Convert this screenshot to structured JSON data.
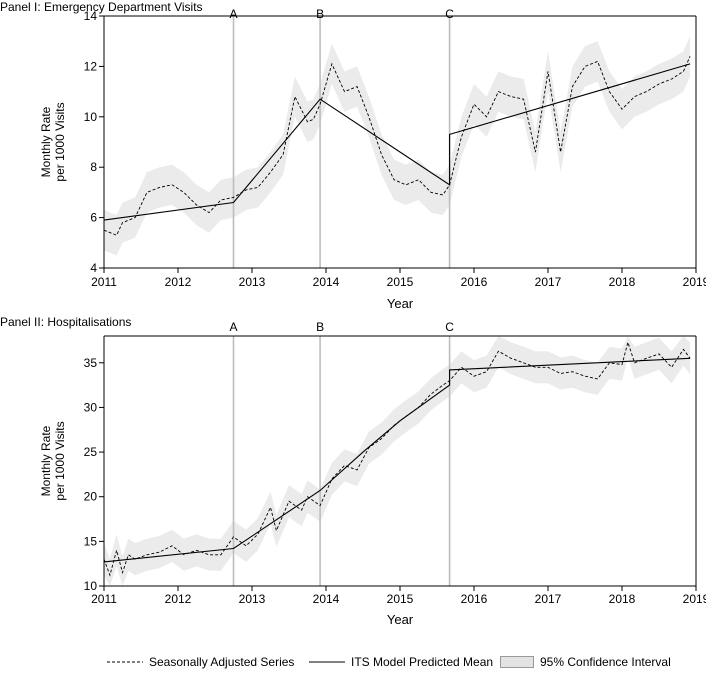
{
  "chart_data": [
    {
      "type": "line",
      "title": "Panel I: Emergency Department Visits",
      "xlabel": "Year",
      "ylabel": [
        "Monthly Rate",
        "per 1000 Visits"
      ],
      "xlim": [
        2011,
        2019
      ],
      "ylim": [
        4,
        14
      ],
      "xticks": [
        2011,
        2012,
        2013,
        2014,
        2015,
        2016,
        2017,
        2018,
        2019
      ],
      "yticks": [
        4,
        6,
        8,
        10,
        12,
        14
      ],
      "interventions": [
        {
          "label": "A",
          "x": 2012.75
        },
        {
          "label": "B",
          "x": 2013.92
        },
        {
          "label": "C",
          "x": 2015.67
        }
      ],
      "series": [
        {
          "name": "Seasonally Adjusted Series",
          "style": "dashed",
          "x": [
            2011.0,
            2011.17,
            2011.25,
            2011.42,
            2011.58,
            2011.75,
            2011.92,
            2012.08,
            2012.25,
            2012.42,
            2012.58,
            2012.75,
            2012.92,
            2013.08,
            2013.25,
            2013.42,
            2013.58,
            2013.75,
            2013.83,
            2013.92,
            2014.08,
            2014.25,
            2014.42,
            2014.58,
            2014.75,
            2014.92,
            2015.08,
            2015.25,
            2015.42,
            2015.58,
            2015.67,
            2015.83,
            2016.0,
            2016.17,
            2016.33,
            2016.5,
            2016.67,
            2016.83,
            2017.0,
            2017.17,
            2017.33,
            2017.5,
            2017.67,
            2017.83,
            2018.0,
            2018.17,
            2018.33,
            2018.5,
            2018.67,
            2018.83,
            2018.92
          ],
          "values": [
            5.5,
            5.3,
            5.8,
            6.0,
            7.0,
            7.2,
            7.3,
            7.0,
            6.5,
            6.2,
            6.7,
            6.8,
            7.1,
            7.2,
            7.8,
            8.5,
            10.8,
            9.8,
            9.9,
            10.5,
            12.1,
            11.0,
            11.2,
            10.0,
            8.5,
            7.5,
            7.3,
            7.5,
            7.0,
            6.9,
            7.3,
            9.2,
            10.5,
            10.0,
            11.0,
            10.8,
            10.7,
            8.6,
            11.8,
            8.6,
            11.2,
            12.0,
            12.2,
            11.0,
            10.3,
            10.8,
            11.0,
            11.3,
            11.5,
            11.8,
            12.4
          ]
        },
        {
          "name": "ITS Model Predicted Mean",
          "style": "solid",
          "x": [
            2011.0,
            2012.75,
            2013.92,
            2015.67,
            2015.67,
            2018.92
          ],
          "values": [
            5.9,
            6.6,
            10.7,
            7.3,
            9.3,
            12.1
          ]
        }
      ],
      "confidence_band_halfwidth": 0.8
    },
    {
      "type": "line",
      "title": "Panel II: Hospitalisations",
      "xlabel": "Year",
      "ylabel": [
        "Monthly Rate",
        "per 1000 Visits"
      ],
      "xlim": [
        2011,
        2019
      ],
      "ylim": [
        10,
        38
      ],
      "xticks": [
        2011,
        2012,
        2013,
        2014,
        2015,
        2016,
        2017,
        2018,
        2019
      ],
      "yticks": [
        10,
        15,
        20,
        25,
        30,
        35
      ],
      "interventions": [
        {
          "label": "A",
          "x": 2012.75
        },
        {
          "label": "B",
          "x": 2013.92
        },
        {
          "label": "C",
          "x": 2015.67
        }
      ],
      "series": [
        {
          "name": "Seasonally Adjusted Series",
          "style": "dashed",
          "x": [
            2011.0,
            2011.08,
            2011.17,
            2011.25,
            2011.33,
            2011.42,
            2011.58,
            2011.75,
            2011.92,
            2012.08,
            2012.25,
            2012.42,
            2012.58,
            2012.75,
            2012.92,
            2013.08,
            2013.25,
            2013.33,
            2013.5,
            2013.67,
            2013.75,
            2013.92,
            2014.08,
            2014.25,
            2014.42,
            2014.58,
            2014.75,
            2014.92,
            2015.08,
            2015.25,
            2015.42,
            2015.58,
            2015.67,
            2015.83,
            2016.0,
            2016.17,
            2016.33,
            2016.5,
            2016.67,
            2016.83,
            2017.0,
            2017.17,
            2017.33,
            2017.5,
            2017.67,
            2017.83,
            2018.0,
            2018.08,
            2018.17,
            2018.33,
            2018.5,
            2018.67,
            2018.83,
            2018.92
          ],
          "values": [
            13.0,
            11.2,
            14.0,
            11.5,
            13.5,
            13.0,
            13.5,
            13.8,
            14.5,
            13.5,
            14.0,
            13.5,
            13.5,
            15.5,
            14.5,
            15.8,
            18.8,
            16.2,
            19.5,
            18.5,
            20.0,
            19.0,
            22.0,
            23.5,
            23.0,
            25.5,
            26.5,
            28.0,
            29.0,
            30.0,
            31.5,
            32.5,
            33.0,
            34.5,
            33.5,
            34.0,
            36.3,
            35.5,
            35.0,
            34.5,
            34.5,
            33.8,
            34.0,
            33.5,
            33.2,
            35.0,
            34.8,
            37.3,
            35.0,
            35.5,
            36.0,
            34.5,
            36.5,
            35.5
          ]
        },
        {
          "name": "ITS Model Predicted Mean",
          "style": "solid",
          "x": [
            2011.0,
            2012.75,
            2013.92,
            2014.5,
            2015.0,
            2015.67,
            2015.67,
            2018.92
          ],
          "values": [
            12.7,
            14.2,
            20.7,
            25.0,
            28.5,
            32.5,
            34.2,
            35.5
          ]
        }
      ],
      "confidence_band_halfwidth": 1.8
    }
  ],
  "legend": {
    "dashed_label": "Seasonally Adjusted Series",
    "solid_label": "ITS Model Predicted Mean",
    "band_label": "95% Confidence Interval"
  },
  "colors": {
    "band": "#ebebeb",
    "intervention_line": "#bdbdbd",
    "series": "#000000",
    "axis": "#000000"
  }
}
